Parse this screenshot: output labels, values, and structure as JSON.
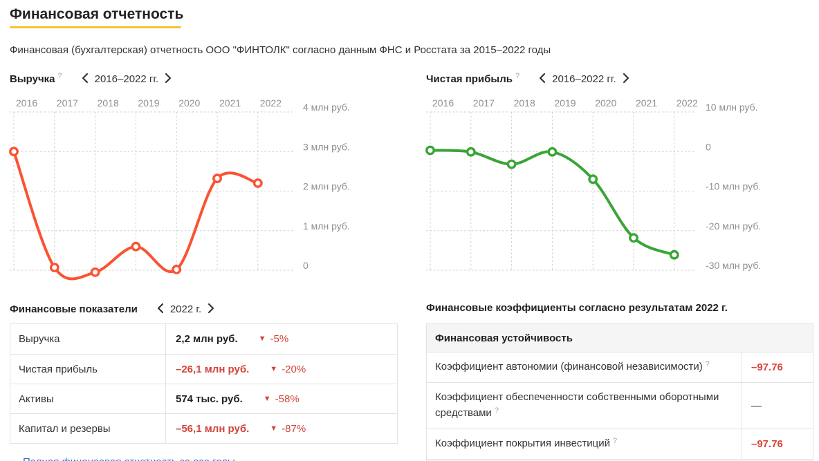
{
  "page": {
    "title": "Финансовая отчетность",
    "subtitle": "Финансовая (бухгалтерская) отчетность ООО \"ФИНТОЛК\" согласно данным ФНС и Росстата за 2015–2022 годы"
  },
  "colors": {
    "accent_yellow": "#f7c234",
    "revenue_line": "#fa5332",
    "profit_line": "#3aa537",
    "negative_red": "#d2453b",
    "link_blue": "#2b6fd8"
  },
  "revenue_chart": {
    "title": "Выручка",
    "help": "?",
    "period": "2016–2022 гг."
  },
  "profit_chart": {
    "title": "Чистая прибыль",
    "help": "?",
    "period": "2016–2022 гг."
  },
  "chart_data": [
    {
      "type": "line",
      "title": "Выручка",
      "x": [
        2016,
        2017,
        2018,
        2019,
        2020,
        2021,
        2022
      ],
      "values": [
        3.0,
        0.07,
        -0.05,
        0.6,
        0.02,
        2.32,
        2.2
      ],
      "unit": "млн руб.",
      "yticks": [
        4,
        3,
        2,
        1,
        0
      ],
      "ytick_labels": [
        "4 млн руб.",
        "3 млн руб.",
        "2 млн руб.",
        "1 млн руб.",
        "0"
      ],
      "ylim": [
        -0.4,
        4
      ],
      "line_color": "#fa5332",
      "grid": "dashed",
      "legend": null
    },
    {
      "type": "line",
      "title": "Чистая прибыль",
      "x": [
        2016,
        2017,
        2018,
        2019,
        2020,
        2021,
        2022
      ],
      "values": [
        0.3,
        -0.1,
        -3.2,
        -0.1,
        -7.0,
        -21.8,
        -26.1
      ],
      "unit": "млн руб.",
      "yticks": [
        10,
        0,
        -10,
        -20,
        -30
      ],
      "ytick_labels": [
        "10 млн руб.",
        "0",
        "-10 млн руб.",
        "-20 млн руб.",
        "-30 млн руб."
      ],
      "ylim": [
        -30,
        10
      ],
      "line_color": "#3aa537",
      "grid": "dashed",
      "legend": null
    }
  ],
  "indicators": {
    "title": "Финансовые показатели",
    "period": "2022 г.",
    "rows": [
      {
        "label": "Выручка",
        "value": "2,2 млн руб.",
        "change": "-5%"
      },
      {
        "label": "Чистая прибыль",
        "value": "–26,1 млн руб.",
        "change": "-20%"
      },
      {
        "label": "Активы",
        "value": "574 тыс. руб.",
        "change": "-58%"
      },
      {
        "label": "Капитал и резервы",
        "value": "–56,1 млн руб.",
        "change": "-87%"
      }
    ],
    "down_arrow": "▼",
    "link": "Полная финансовая отчетность за все годы"
  },
  "coefficients": {
    "title": "Финансовые коэффициенты согласно результатам 2022 г.",
    "section": "Финансовая устойчивость",
    "rows": [
      {
        "label": "Коэффициент автономии (финансовой независимости)",
        "help": "?",
        "value": "–97.76"
      },
      {
        "label": "Коэффициент обеспеченности собственными оборотными средствами",
        "help": "?",
        "value": "—"
      },
      {
        "label": "Коэффициент покрытия инвестиций",
        "help": "?",
        "value": "–97.76"
      }
    ]
  }
}
